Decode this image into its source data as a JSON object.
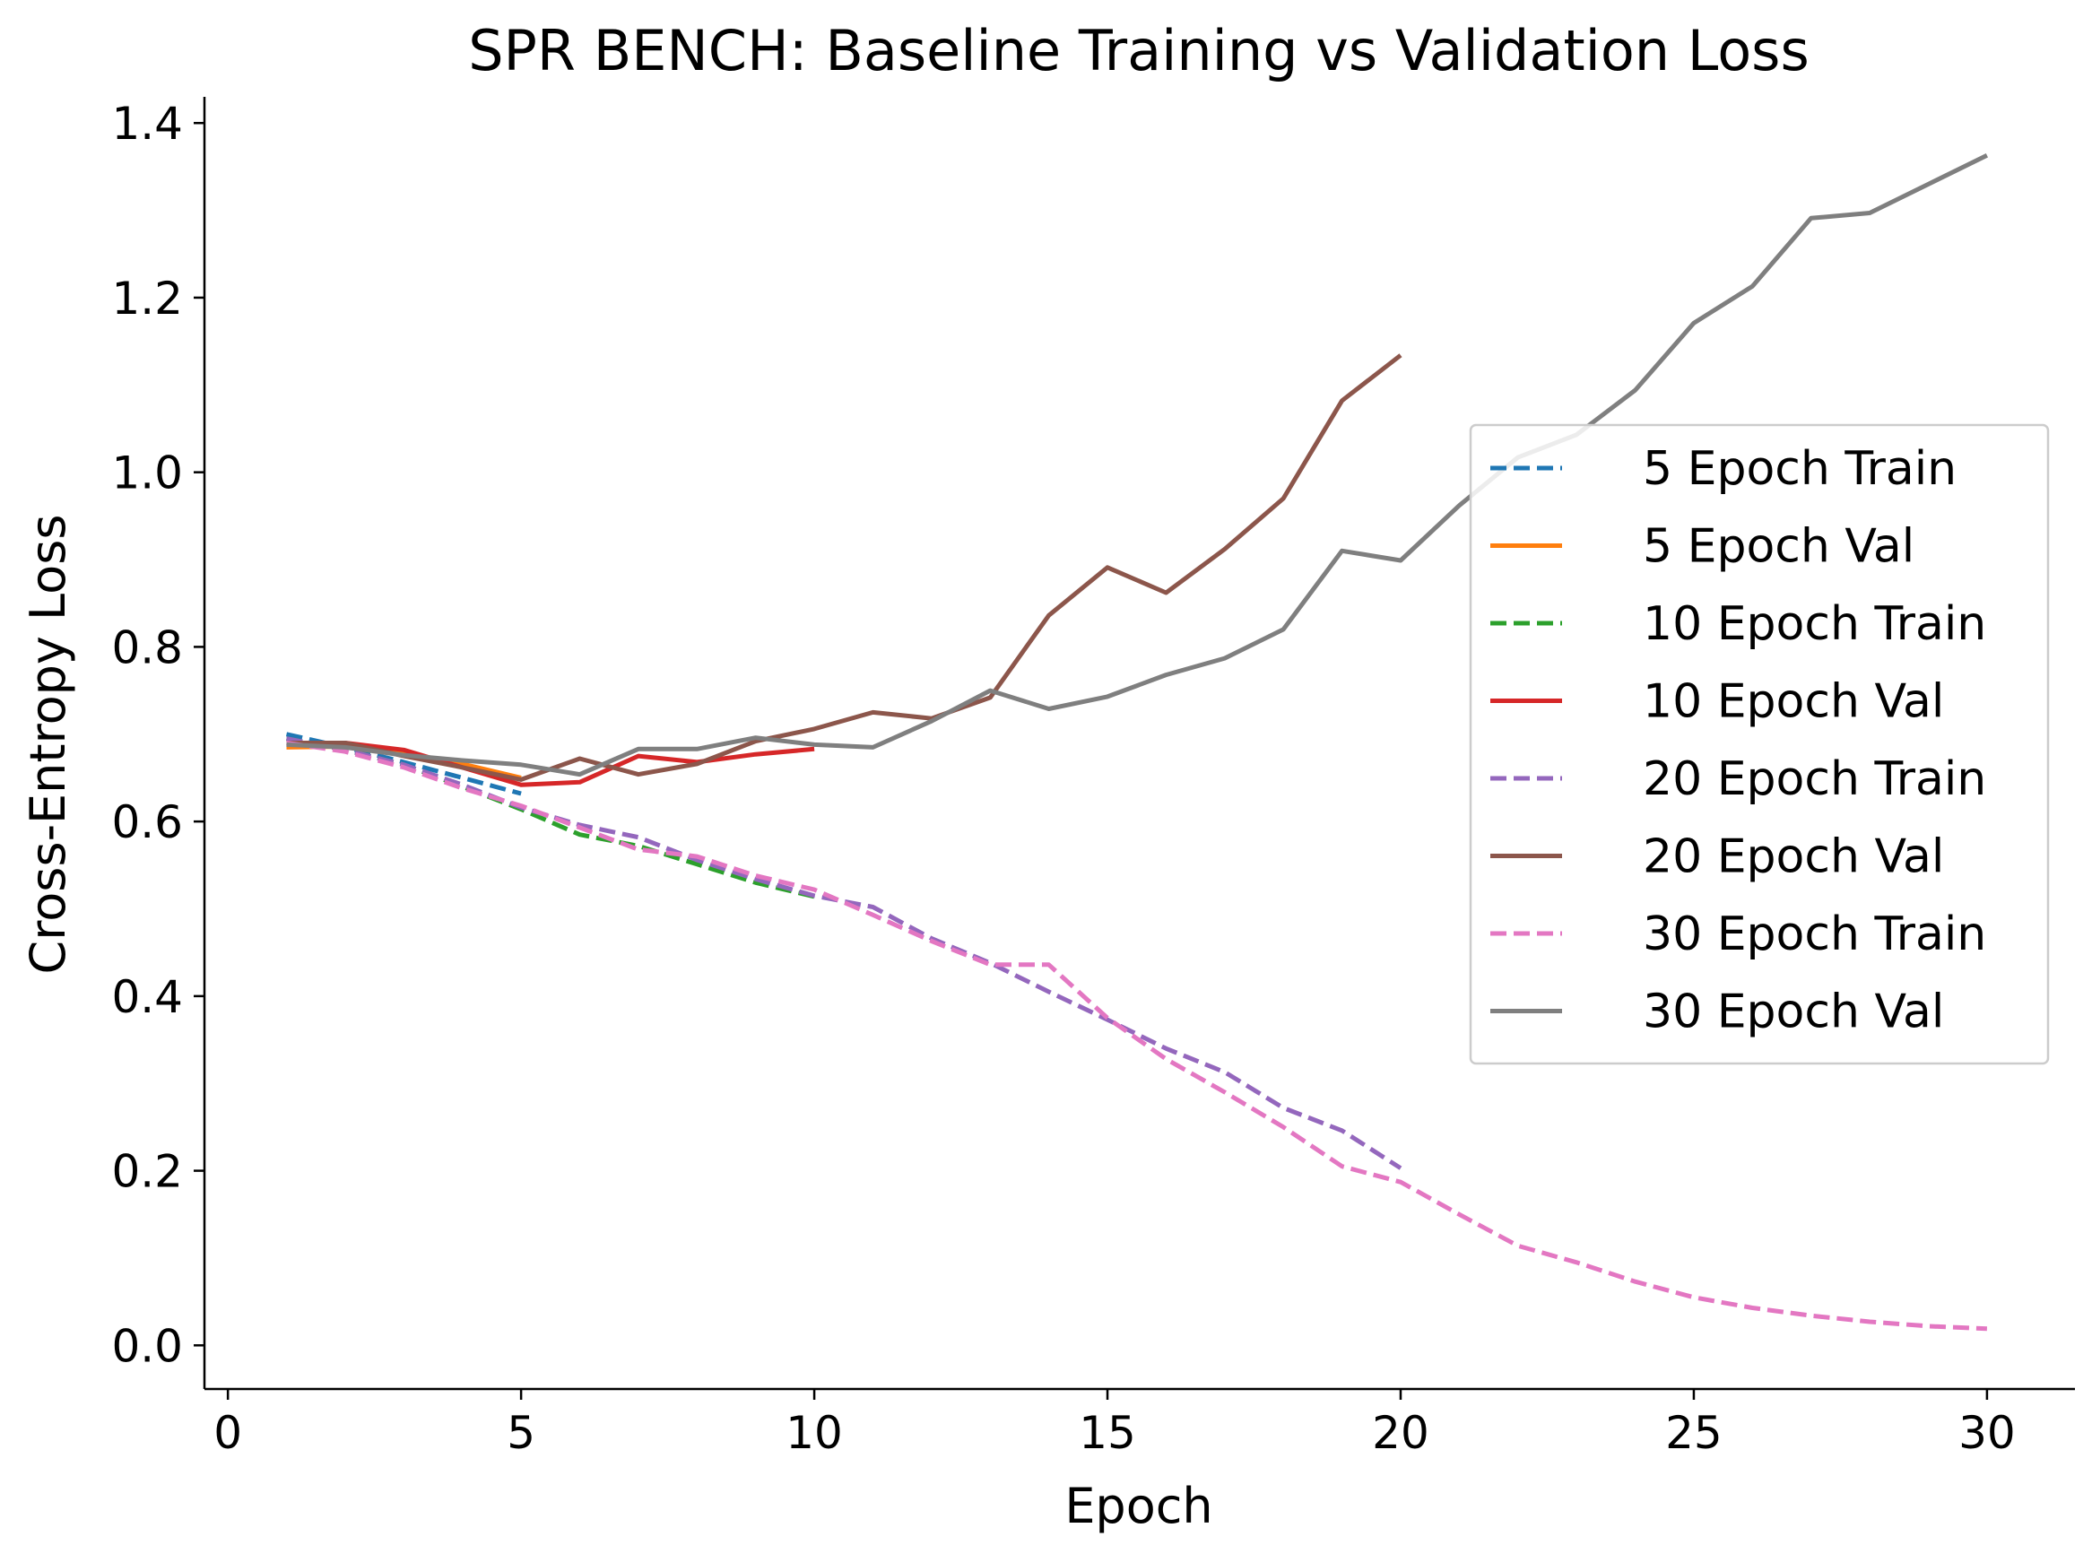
{
  "chart_data": {
    "type": "line",
    "title": "SPR BENCH: Baseline Training vs Validation Loss",
    "xlabel": "Epoch",
    "ylabel": "Cross-Entropy Loss",
    "xlim": [
      -0.4,
      31.5
    ],
    "ylim": [
      -0.05,
      1.43
    ],
    "xticks": [
      0,
      5,
      10,
      15,
      20,
      25,
      30
    ],
    "yticks": [
      0.0,
      0.2,
      0.4,
      0.6,
      0.8,
      1.0,
      1.2,
      1.4
    ],
    "xtick_labels": [
      "0",
      "5",
      "10",
      "15",
      "20",
      "25",
      "30"
    ],
    "ytick_labels": [
      "0.0",
      "0.2",
      "0.4",
      "0.6",
      "0.8",
      "1.0",
      "1.2",
      "1.4"
    ],
    "grid": false,
    "legend_position": "center-right",
    "series": [
      {
        "name": "5 Epoch Train",
        "color": "#1f77b4",
        "dashed": true,
        "x": [
          1,
          2,
          3,
          4,
          5
        ],
        "y": [
          0.7,
          0.685,
          0.668,
          0.65,
          0.632
        ]
      },
      {
        "name": "5 Epoch Val",
        "color": "#ff7f0e",
        "dashed": false,
        "x": [
          1,
          2,
          3,
          4,
          5
        ],
        "y": [
          0.685,
          0.686,
          0.678,
          0.666,
          0.65
        ]
      },
      {
        "name": "10 Epoch Train",
        "color": "#2ca02c",
        "dashed": true,
        "x": [
          1,
          2,
          3,
          4,
          5,
          6,
          7,
          8,
          9,
          10
        ],
        "y": [
          0.695,
          0.682,
          0.665,
          0.64,
          0.614,
          0.585,
          0.572,
          0.551,
          0.53,
          0.514
        ]
      },
      {
        "name": "10 Epoch Val",
        "color": "#d62728",
        "dashed": false,
        "x": [
          1,
          2,
          3,
          4,
          5,
          6,
          7,
          8,
          9,
          10
        ],
        "y": [
          0.69,
          0.69,
          0.682,
          0.662,
          0.642,
          0.645,
          0.675,
          0.668,
          0.677,
          0.683
        ]
      },
      {
        "name": "20 Epoch Train",
        "color": "#9467bd",
        "dashed": true,
        "x": [
          1,
          2,
          3,
          4,
          5,
          6,
          7,
          8,
          9,
          10,
          11,
          12,
          13,
          14,
          15,
          16,
          17,
          18,
          19,
          20
        ],
        "y": [
          0.695,
          0.682,
          0.665,
          0.642,
          0.616,
          0.596,
          0.582,
          0.556,
          0.534,
          0.515,
          0.502,
          0.466,
          0.438,
          0.405,
          0.373,
          0.34,
          0.313,
          0.272,
          0.246,
          0.203
        ]
      },
      {
        "name": "20 Epoch Val",
        "color": "#8c564b",
        "dashed": false,
        "x": [
          1,
          2,
          3,
          4,
          5,
          6,
          7,
          8,
          9,
          10,
          11,
          12,
          13,
          14,
          15,
          16,
          17,
          18,
          19,
          20
        ],
        "y": [
          0.69,
          0.69,
          0.675,
          0.662,
          0.648,
          0.672,
          0.654,
          0.666,
          0.692,
          0.706,
          0.725,
          0.718,
          0.742,
          0.836,
          0.891,
          0.862,
          0.912,
          0.97,
          1.082,
          1.134
        ]
      },
      {
        "name": "30 Epoch Train",
        "color": "#e377c2",
        "dashed": true,
        "x": [
          1,
          2,
          3,
          4,
          5,
          6,
          7,
          8,
          9,
          10,
          11,
          12,
          13,
          14,
          15,
          16,
          17,
          18,
          19,
          20,
          21,
          22,
          23,
          24,
          25,
          26,
          27,
          28,
          29,
          30
        ],
        "y": [
          0.69,
          0.68,
          0.662,
          0.638,
          0.618,
          0.593,
          0.568,
          0.56,
          0.538,
          0.522,
          0.493,
          0.463,
          0.436,
          0.436,
          0.375,
          0.328,
          0.29,
          0.25,
          0.205,
          0.187,
          0.15,
          0.114,
          0.095,
          0.073,
          0.055,
          0.043,
          0.034,
          0.027,
          0.022,
          0.019
        ]
      },
      {
        "name": "30 Epoch Val",
        "color": "#7f7f7f",
        "dashed": false,
        "x": [
          1,
          2,
          3,
          4,
          5,
          6,
          7,
          8,
          9,
          10,
          11,
          12,
          13,
          14,
          15,
          16,
          17,
          18,
          19,
          20,
          21,
          22,
          23,
          24,
          25,
          26,
          27,
          28,
          29,
          30
        ],
        "y": [
          0.688,
          0.685,
          0.676,
          0.67,
          0.665,
          0.654,
          0.683,
          0.683,
          0.696,
          0.688,
          0.685,
          0.715,
          0.75,
          0.729,
          0.743,
          0.768,
          0.787,
          0.82,
          0.91,
          0.899,
          0.962,
          1.017,
          1.043,
          1.094,
          1.171,
          1.213,
          1.291,
          1.297,
          1.33,
          1.363
        ]
      }
    ]
  }
}
